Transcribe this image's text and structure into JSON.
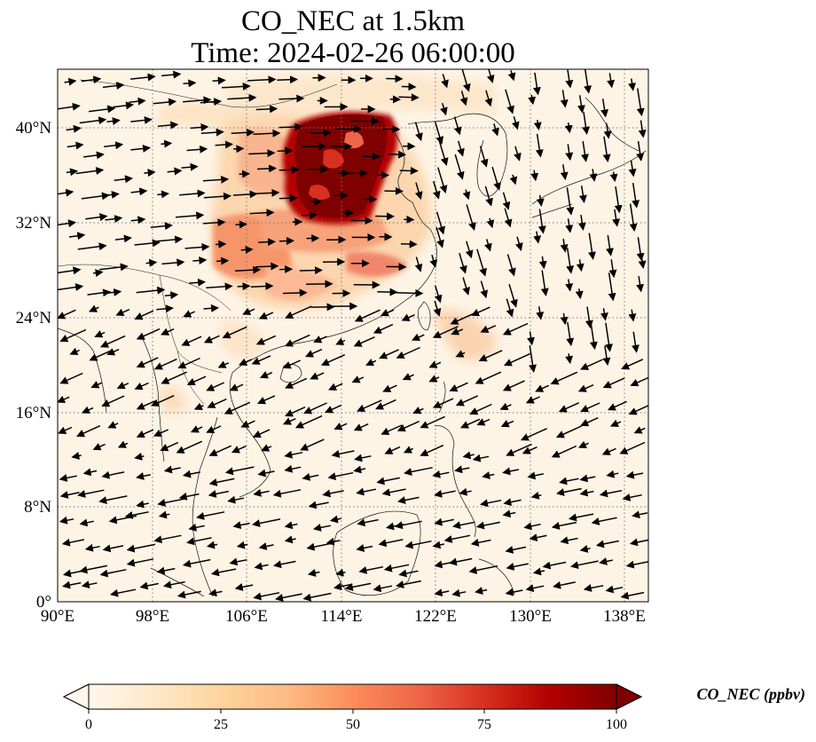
{
  "title": {
    "line1": "CO_NEC at 1.5km",
    "line2": "Time: 2024-02-26 06:00:00"
  },
  "map": {
    "lon_range": [
      90,
      140
    ],
    "lat_range": [
      0,
      45
    ],
    "lon_ticks": [
      "90°E",
      "98°E",
      "106°E",
      "114°E",
      "122°E",
      "130°E",
      "138°E"
    ],
    "lat_ticks": [
      "0°",
      "8°N",
      "16°N",
      "24°N",
      "32°N",
      "40°N"
    ],
    "gridlines": true,
    "coastlines": true,
    "field_colormap": "OrRd",
    "wind_vectors": true
  },
  "colorbar": {
    "label": "CO_NEC (ppbv)",
    "ticks": [
      "0",
      "25",
      "50",
      "75",
      "100"
    ],
    "range": [
      0,
      100
    ],
    "extend": "both",
    "colors": [
      "#fff7ec",
      "#fee8c8",
      "#fdd49e",
      "#fdbb84",
      "#fc8d59",
      "#ef6548",
      "#d7301f",
      "#b30000",
      "#7f0000"
    ]
  }
}
